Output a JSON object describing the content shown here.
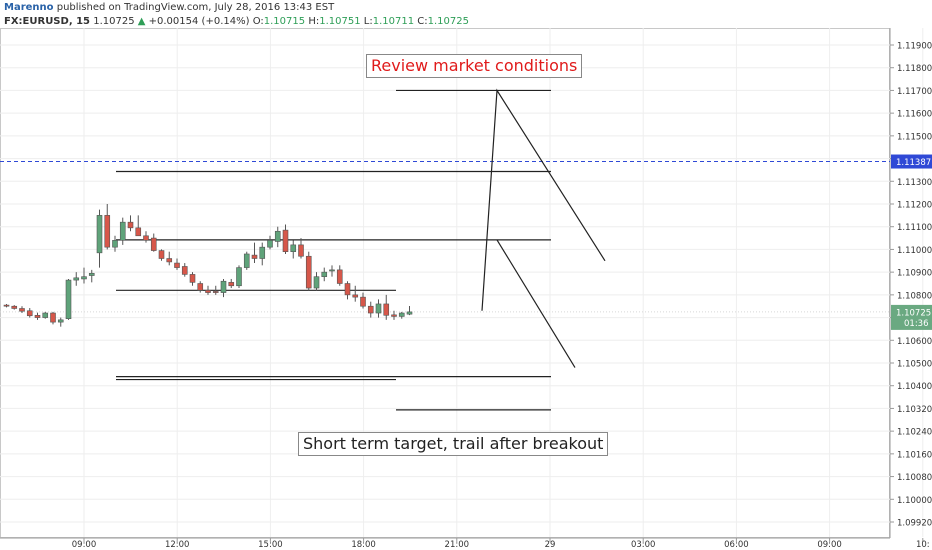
{
  "header": {
    "author": "Marenno",
    "published": "published on TradingView.com, July 28, 2016 13:43 EST",
    "symbol": "FX:EURUSD, 15",
    "price": "1.10725",
    "change": "+0.00154 (+0.14%)",
    "o_label": "O:",
    "o_value": "1.10715",
    "h_label": "H:",
    "h_value": "1.10751",
    "l_label": "L:",
    "l_value": "1.10711",
    "c_label": "C:",
    "c_value": "1.10725"
  },
  "annotations": {
    "review": "Review market conditions",
    "target": "Short term target, trail after breakout"
  },
  "colors": {
    "up": "#5fa37a",
    "down": "#d6574a",
    "dashed_line": "#2f49d6",
    "price_badge": "#6aa981",
    "level_badge": "#2f49d6",
    "review_text": "#e01b1b"
  },
  "chart_data": {
    "type": "candlestick",
    "symbol": "FX:EURUSD",
    "interval": "15",
    "ylim": [
      1.0988,
      1.1201
    ],
    "y_ticks": [
      "1.11900",
      "1.11800",
      "1.11700",
      "1.11600",
      "1.11500",
      "1.11400",
      "1.11300",
      "1.11200",
      "1.11100",
      "1.11000",
      "1.10900",
      "1.10800",
      "1.10700",
      "1.10600",
      "1.10500",
      "1.10400",
      "1.10320",
      "1.10240",
      "1.10160",
      "1.10080",
      "1.10000",
      "1.09920"
    ],
    "x_ticks": [
      "09:00",
      "12:00",
      "15:00",
      "18:00",
      "21:00",
      "29",
      "03:00",
      "06:00",
      "09:00",
      "10:"
    ],
    "dashed_level": {
      "value": 1.11387,
      "label": "1.11387"
    },
    "current_price": {
      "value": 1.10725,
      "label": "1.10725",
      "countdown": "01:36"
    },
    "candles": [
      {
        "o": 1.10755,
        "h": 1.1076,
        "l": 1.10745,
        "c": 1.1075
      },
      {
        "o": 1.1075,
        "h": 1.10755,
        "l": 1.10735,
        "c": 1.1074
      },
      {
        "o": 1.1074,
        "h": 1.1075,
        "l": 1.1072,
        "c": 1.10728
      },
      {
        "o": 1.1073,
        "h": 1.10742,
        "l": 1.107,
        "c": 1.10708
      },
      {
        "o": 1.1071,
        "h": 1.10722,
        "l": 1.1069,
        "c": 1.107
      },
      {
        "o": 1.107,
        "h": 1.10725,
        "l": 1.10695,
        "c": 1.1072
      },
      {
        "o": 1.1072,
        "h": 1.10725,
        "l": 1.1067,
        "c": 1.1068
      },
      {
        "o": 1.1068,
        "h": 1.107,
        "l": 1.1066,
        "c": 1.1069
      },
      {
        "o": 1.10695,
        "h": 1.1087,
        "l": 1.1069,
        "c": 1.10865
      },
      {
        "o": 1.10865,
        "h": 1.109,
        "l": 1.1084,
        "c": 1.10875
      },
      {
        "o": 1.1087,
        "h": 1.1092,
        "l": 1.1085,
        "c": 1.1088
      },
      {
        "o": 1.10885,
        "h": 1.1091,
        "l": 1.10855,
        "c": 1.10895
      },
      {
        "o": 1.10985,
        "h": 1.11175,
        "l": 1.1092,
        "c": 1.1115
      },
      {
        "o": 1.1115,
        "h": 1.112,
        "l": 1.11,
        "c": 1.1101
      },
      {
        "o": 1.1101,
        "h": 1.1106,
        "l": 1.1099,
        "c": 1.1104
      },
      {
        "o": 1.1104,
        "h": 1.1114,
        "l": 1.1102,
        "c": 1.1112
      },
      {
        "o": 1.1112,
        "h": 1.1115,
        "l": 1.1108,
        "c": 1.11095
      },
      {
        "o": 1.11095,
        "h": 1.1115,
        "l": 1.1106,
        "c": 1.1106
      },
      {
        "o": 1.1106,
        "h": 1.1108,
        "l": 1.1103,
        "c": 1.1104
      },
      {
        "o": 1.1105,
        "h": 1.1107,
        "l": 1.1099,
        "c": 1.10995
      },
      {
        "o": 1.10995,
        "h": 1.11,
        "l": 1.1095,
        "c": 1.1096
      },
      {
        "o": 1.1096,
        "h": 1.1099,
        "l": 1.1093,
        "c": 1.10945
      },
      {
        "o": 1.1094,
        "h": 1.1096,
        "l": 1.1091,
        "c": 1.1092
      },
      {
        "o": 1.10925,
        "h": 1.1094,
        "l": 1.1088,
        "c": 1.1089
      },
      {
        "o": 1.1089,
        "h": 1.109,
        "l": 1.1084,
        "c": 1.10855
      },
      {
        "o": 1.1085,
        "h": 1.1086,
        "l": 1.1081,
        "c": 1.1082
      },
      {
        "o": 1.1082,
        "h": 1.1084,
        "l": 1.108,
        "c": 1.1081
      },
      {
        "o": 1.10815,
        "h": 1.1084,
        "l": 1.108,
        "c": 1.1081
      },
      {
        "o": 1.1081,
        "h": 1.1087,
        "l": 1.1079,
        "c": 1.1086
      },
      {
        "o": 1.10855,
        "h": 1.1087,
        "l": 1.1083,
        "c": 1.1084
      },
      {
        "o": 1.1084,
        "h": 1.1093,
        "l": 1.1083,
        "c": 1.1092
      },
      {
        "o": 1.1092,
        "h": 1.1099,
        "l": 1.1091,
        "c": 1.1098
      },
      {
        "o": 1.10975,
        "h": 1.1103,
        "l": 1.1094,
        "c": 1.1096
      },
      {
        "o": 1.1096,
        "h": 1.1103,
        "l": 1.1093,
        "c": 1.1101
      },
      {
        "o": 1.1101,
        "h": 1.1106,
        "l": 1.11,
        "c": 1.1104
      },
      {
        "o": 1.11035,
        "h": 1.111,
        "l": 1.1101,
        "c": 1.1108
      },
      {
        "o": 1.11085,
        "h": 1.1111,
        "l": 1.1098,
        "c": 1.1099
      },
      {
        "o": 1.1099,
        "h": 1.1104,
        "l": 1.1096,
        "c": 1.1102
      },
      {
        "o": 1.1102,
        "h": 1.1105,
        "l": 1.1096,
        "c": 1.1097
      },
      {
        "o": 1.1097,
        "h": 1.1099,
        "l": 1.1082,
        "c": 1.1083
      },
      {
        "o": 1.1083,
        "h": 1.109,
        "l": 1.1082,
        "c": 1.1088
      },
      {
        "o": 1.1088,
        "h": 1.1092,
        "l": 1.1086,
        "c": 1.109
      },
      {
        "o": 1.10905,
        "h": 1.1093,
        "l": 1.1088,
        "c": 1.1091
      },
      {
        "o": 1.1091,
        "h": 1.1093,
        "l": 1.1084,
        "c": 1.1085
      },
      {
        "o": 1.1085,
        "h": 1.1086,
        "l": 1.1078,
        "c": 1.108
      },
      {
        "o": 1.108,
        "h": 1.1084,
        "l": 1.1077,
        "c": 1.1079
      },
      {
        "o": 1.1079,
        "h": 1.1081,
        "l": 1.1074,
        "c": 1.1075
      },
      {
        "o": 1.1075,
        "h": 1.1077,
        "l": 1.107,
        "c": 1.1072
      },
      {
        "o": 1.1072,
        "h": 1.1078,
        "l": 1.107,
        "c": 1.1076
      },
      {
        "o": 1.1076,
        "h": 1.108,
        "l": 1.1069,
        "c": 1.1071
      },
      {
        "o": 1.10712,
        "h": 1.1073,
        "l": 1.1069,
        "c": 1.10705
      },
      {
        "o": 1.10705,
        "h": 1.10725,
        "l": 1.10695,
        "c": 1.1072
      },
      {
        "o": 1.10715,
        "h": 1.10751,
        "l": 1.10711,
        "c": 1.10725
      }
    ],
    "drawings": {
      "levels": [
        1.117,
        1.11343,
        1.11042,
        1.1082,
        1.1044,
        1.10427,
        1.10315
      ],
      "projection_lines": [
        {
          "from": 1.1073,
          "to": 1.117,
          "then": 1.1095
        },
        {
          "from": 1.11042,
          "to": 1.1048
        }
      ]
    }
  }
}
